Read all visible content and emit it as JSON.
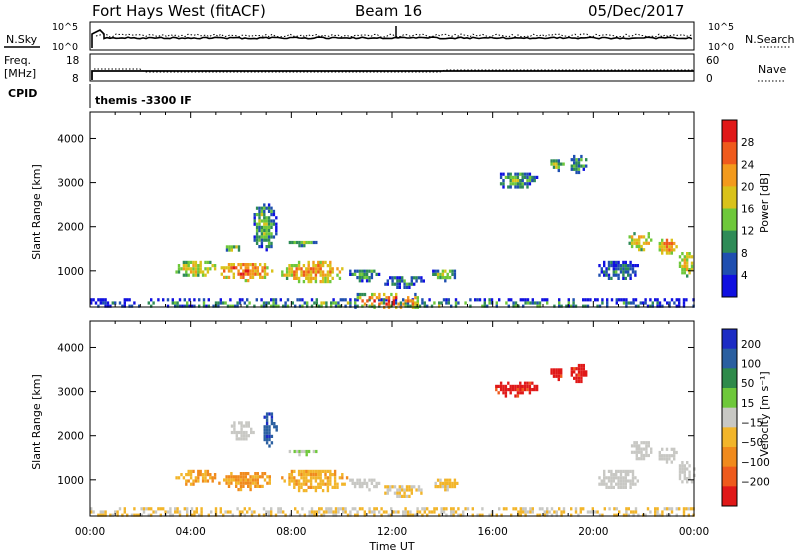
{
  "header": {
    "station": "Fort Hays West (fitACF)",
    "beam": "Beam 16",
    "date": "05/Dec/2017"
  },
  "strips": {
    "nsky_label": "N.Sky",
    "nsearch_label": "N.Search",
    "noise_ticks_left": [
      "10^5",
      "10^0"
    ],
    "noise_ticks_right": [
      "10^5",
      "10^0"
    ],
    "freq_label": "Freq.",
    "freq_unit": "[MHz]",
    "freq_ticks": [
      "18",
      "8"
    ],
    "nave_label": "Nave",
    "nave_ticks": [
      "60",
      "0"
    ],
    "cpid_label": "CPID",
    "cpid_text": "themis -3300 IF"
  },
  "chart_data": [
    {
      "type": "heatmap",
      "name": "power",
      "ylabel": "Slant Range [km]",
      "xlabel": "Time UT",
      "y_ticks": [
        1000,
        2000,
        3000,
        4000
      ],
      "ylim": [
        180,
        4600
      ],
      "x_ticks": [
        "00:00",
        "04:00",
        "08:00",
        "12:00",
        "16:00",
        "20:00",
        "00:00"
      ],
      "xlim_hours": [
        0,
        24
      ],
      "colorbar": {
        "label": "Power [dB]",
        "ticks": [
          "4",
          "8",
          "12",
          "16",
          "20",
          "24",
          "28"
        ],
        "range": [
          0,
          30
        ],
        "colors": [
          "#1010e0",
          "#1f4fb0",
          "#2e8b57",
          "#6ec83a",
          "#d9c21a",
          "#f39a1c",
          "#ef5a1c",
          "#e01818"
        ]
      },
      "regions": [
        {
          "t": [
            3.3,
            5.0
          ],
          "r": [
            900,
            1300
          ],
          "v": 18
        },
        {
          "t": [
            5.0,
            7.2
          ],
          "r": [
            800,
            1250
          ],
          "v": 24
        },
        {
          "t": [
            7.5,
            10.2
          ],
          "r": [
            750,
            1300
          ],
          "v": 22
        },
        {
          "t": [
            10.2,
            11.5
          ],
          "r": [
            800,
            1100
          ],
          "v": 12
        },
        {
          "t": [
            11.5,
            13.3
          ],
          "r": [
            650,
            950
          ],
          "v": 10
        },
        {
          "t": [
            13.5,
            14.6
          ],
          "r": [
            800,
            1100
          ],
          "v": 14
        },
        {
          "t": [
            5.3,
            6.0
          ],
          "r": [
            1450,
            1650
          ],
          "v": 14
        },
        {
          "t": [
            7.8,
            9.0
          ],
          "r": [
            1600,
            1750
          ],
          "v": 12
        },
        {
          "t": [
            6.4,
            7.4
          ],
          "r": [
            1500,
            2600
          ],
          "v": 13
        },
        {
          "t": [
            16.0,
            17.8
          ],
          "r": [
            2900,
            3300
          ],
          "v": 12
        },
        {
          "t": [
            18.2,
            18.8
          ],
          "r": [
            3300,
            3600
          ],
          "v": 14
        },
        {
          "t": [
            19.0,
            19.7
          ],
          "r": [
            3200,
            3700
          ],
          "v": 12
        },
        {
          "t": [
            20.1,
            21.8
          ],
          "r": [
            800,
            1300
          ],
          "v": 9
        },
        {
          "t": [
            21.3,
            22.3
          ],
          "r": [
            1500,
            1950
          ],
          "v": 20
        },
        {
          "t": [
            22.5,
            23.3
          ],
          "r": [
            1400,
            1800
          ],
          "v": 22
        },
        {
          "t": [
            23.3,
            24.0
          ],
          "r": [
            900,
            1500
          ],
          "v": 18
        },
        {
          "t": [
            0.0,
            24.0
          ],
          "r": [
            180,
            380
          ],
          "v": 12
        },
        {
          "t": [
            10.5,
            13.0
          ],
          "r": [
            200,
            500
          ],
          "v": 26
        }
      ]
    },
    {
      "type": "heatmap",
      "name": "velocity",
      "ylabel": "Slant Range [km]",
      "xlabel": "Time UT",
      "y_ticks": [
        1000,
        2000,
        3000,
        4000
      ],
      "ylim": [
        180,
        4600
      ],
      "x_ticks": [
        "00:00",
        "04:00",
        "08:00",
        "12:00",
        "16:00",
        "20:00",
        "00:00"
      ],
      "xlim_hours": [
        0,
        24
      ],
      "colorbar": {
        "label": "Velocity [m s⁻¹]",
        "ticks": [
          "200",
          "100",
          "50",
          "15",
          "−15",
          "−50",
          "−100",
          "−200"
        ],
        "range": [
          -250,
          250
        ],
        "colors": [
          "#1c2cc4",
          "#2a5fa0",
          "#2e8a4a",
          "#6ec83a",
          "#c8c8c4",
          "#f2b52a",
          "#f08a1c",
          "#ee5a1c",
          "#e01818"
        ]
      },
      "regions": [
        {
          "t": [
            3.3,
            5.0
          ],
          "r": [
            900,
            1300
          ],
          "v": -80
        },
        {
          "t": [
            5.0,
            7.2
          ],
          "r": [
            800,
            1250
          ],
          "v": -90
        },
        {
          "t": [
            7.5,
            10.2
          ],
          "r": [
            750,
            1300
          ],
          "v": -70
        },
        {
          "t": [
            10.2,
            11.5
          ],
          "r": [
            800,
            1100
          ],
          "v": 0
        },
        {
          "t": [
            11.5,
            13.3
          ],
          "r": [
            650,
            950
          ],
          "v": -30
        },
        {
          "t": [
            13.5,
            14.6
          ],
          "r": [
            800,
            1100
          ],
          "v": -40
        },
        {
          "t": [
            6.8,
            7.4
          ],
          "r": [
            1800,
            2600
          ],
          "v": 180
        },
        {
          "t": [
            5.5,
            6.5
          ],
          "r": [
            1900,
            2400
          ],
          "v": 0
        },
        {
          "t": [
            7.8,
            9.0
          ],
          "r": [
            1600,
            1750
          ],
          "v": 30
        },
        {
          "t": [
            16.0,
            17.8
          ],
          "r": [
            2900,
            3300
          ],
          "v": -210
        },
        {
          "t": [
            18.2,
            18.8
          ],
          "r": [
            3300,
            3600
          ],
          "v": -210
        },
        {
          "t": [
            19.0,
            19.7
          ],
          "r": [
            3200,
            3700
          ],
          "v": -210
        },
        {
          "t": [
            20.1,
            21.8
          ],
          "r": [
            800,
            1300
          ],
          "v": 0
        },
        {
          "t": [
            21.3,
            22.3
          ],
          "r": [
            1500,
            1950
          ],
          "v": -5
        },
        {
          "t": [
            22.5,
            23.3
          ],
          "r": [
            1400,
            1800
          ],
          "v": 5
        },
        {
          "t": [
            23.3,
            24.0
          ],
          "r": [
            900,
            1500
          ],
          "v": -5
        },
        {
          "t": [
            0.0,
            24.0
          ],
          "r": [
            180,
            380
          ],
          "v": -30
        }
      ]
    }
  ]
}
